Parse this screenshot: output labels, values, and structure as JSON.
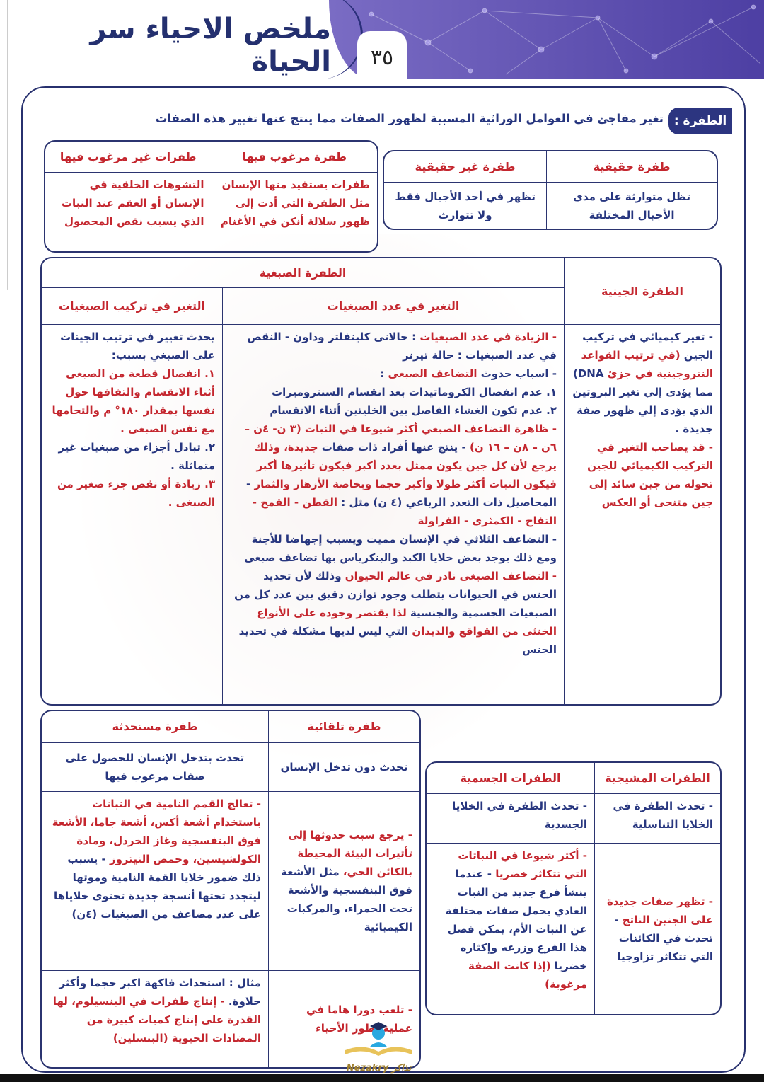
{
  "header": {
    "title": "ملخص الاحياء سر الحياة",
    "page_number": "٣٥"
  },
  "colors": {
    "blue": "#27367f",
    "red": "#c4262e",
    "navy": "#2b3470",
    "banner": "#5a4db0"
  },
  "definition": {
    "label": "الطفرة :",
    "text": "تغير مفاجئ في العوامل الوراثية المسببة لظهور الصفات مما ينتج عنها تغيير هذه الصفات"
  },
  "real_table": {
    "headers": [
      "طفرة حقيقية",
      "طفرة غير حقيقية"
    ],
    "cells": [
      "تظل متوارثة على مدى الأجيال المختلفة",
      "تظهر في أحد الأجيال فقط ولا تتوارث"
    ]
  },
  "desire_table": {
    "headers": [
      "طفرة مرغوب فيها",
      "طفرات غير مرغوب فيها"
    ],
    "cells": [
      "طفرات يستفيد منها الإنسان مثل الطفرة التي أدت إلى ظهور سلالة أنكن في الأغنام",
      "التشوهات الخلقية في الإنسان أو العقم عند النبات الذي يسبب نقص المحصول"
    ]
  },
  "main_table": {
    "gene_header": "الطفرة الجينية",
    "chrom_header": "الطفرة الصبغية",
    "sub_headers": [
      "التغير في عدد الصبغيات",
      "التغير في تركيب الصبغيات"
    ],
    "gene_items": [
      [
        {
          "c": "blue",
          "t": "- تغير كيميائي في تركيب الجين "
        },
        {
          "c": "red",
          "t": "(في ترتيب القواعد النتروجينية في جزئ "
        },
        {
          "c": "blue",
          "t": "DNA) مما يؤدى إلي تغير البروتين الذي يؤدى إلي ظهور صفة جديدة ."
        }
      ],
      [
        {
          "c": "red",
          "t": "- قد يصاحب التغير في التركيب الكيميائي للجين تحوله من جين سائد إلى جين متنحى أو العكس"
        }
      ]
    ],
    "number_items": [
      [
        {
          "c": "red",
          "t": "- الزيادة في عدد الصبغيات "
        },
        {
          "c": "blue",
          "t": ": حالاتى كلينفلتر وداون - النقص في عدد الصبغيات : حالة تيرنر"
        }
      ],
      [
        {
          "c": "blue",
          "t": "- اسباب حدوث "
        },
        {
          "c": "red",
          "t": "التضاعف الصبغى "
        },
        {
          "c": "blue",
          "t": ":"
        }
      ],
      [
        {
          "c": "blue",
          "t": "١. عدم انفصال الكروماتيدات بعد انقسام السنترومیرات"
        }
      ],
      [
        {
          "c": "blue",
          "t": "٢. عدم تكون الغشاء الفاصل بين الخليتين أثناء الانقسام"
        }
      ],
      [
        {
          "c": "red",
          "t": "- ظاهرة التضاعف الصبغي أكثر شيوعا في النبات (٣ ن- ٤ن – ٦ن – ٨ن – ١٦ ن)"
        },
        {
          "c": "blue",
          "t": " - ينتج عنها أفراد ذات صفات "
        },
        {
          "c": "red",
          "t": "جديدة، وذلك يرجع لأن كل جين يكون ممثل بعدد أكبر فيكون تأثيرها أكبر فيكون النبات أكثر طولا وأكبر حجما وبخاصة الأزهار والثمار"
        },
        {
          "c": "blue",
          "t": " - المحاصيل ذات التعدد الرباعي (٤ ن) مثل : "
        },
        {
          "c": "red",
          "t": "القطن - القمح - التفاح - الكمثرى - الفراولة"
        }
      ],
      [
        {
          "c": "blue",
          "t": "- التضاعف الثلاثي في الإنسان مميت ويسبب إجهاضا للأجنة ومع ذلك يوجد بعض خلايا الكبد والبنكرياس بها تضاعف صبغى"
        }
      ],
      [
        {
          "c": "red",
          "t": "- التضاعف الصبغى نادر في عالم الحيوان"
        },
        {
          "c": "blue",
          "t": " وذلك لأن تحديد الجنس في الحيوانات يتطلب وجود توازن دقيق بين عدد كل من الصبغيات الجسمية والجنسية "
        },
        {
          "c": "red",
          "t": "لذا يقتصر وجوده على الأنواع الخنثى من القواقع والديدان "
        },
        {
          "c": "blue",
          "t": "التي ليس لديها مشكلة في تحديد الجنس"
        }
      ]
    ],
    "structure_items": [
      [
        {
          "c": "blue",
          "t": "يحدث تغيير في ترتيب الجينات على الصبغي بسبب:"
        }
      ],
      [
        {
          "c": "red",
          "t": "١. انفصال قطعة من الصبغى أثناء الانقسام والتفافها حول نفسها بمقدار ١٨٠° م والتحامها مع نفس الصبغى ."
        }
      ],
      [
        {
          "c": "blue",
          "t": "٢. تبادل أجزاء من صبغيات غير متماثلة ."
        }
      ],
      [
        {
          "c": "red",
          "t": "٣. زيادة أو نقص جزء صغير من الصبغى ."
        }
      ]
    ]
  },
  "origin_table": {
    "headers": [
      "طفرة تلقائية",
      "طفرة مستحدثة"
    ],
    "definitions": [
      "تحدث دون تدخل الإنسان",
      "تحدث بتدخل الإنسان للحصول على صفات مرغوب فيها"
    ],
    "causes": [
      [
        {
          "c": "red",
          "t": "- يرجع سبب حدوثها إلى تأثيرات البيئة المحيطة بالكائن الحي، "
        },
        {
          "c": "blue",
          "t": "مثل الأشعة فوق البنفسجية والأشعة تحت الحمراء، والمركبات الكيميائية"
        }
      ],
      [
        {
          "c": "red",
          "t": "- تعالج القمم النامية في النباتات باستخدام أشعة أكس، أشعة جاما، الأشعة فوق البنفسجية وغاز الخردل، ومادة الكولشيسين، وحمض النيتروز"
        },
        {
          "c": "blue",
          "t": " - يسبب ذلك ضمور خلايا القمة النامية وموتها ليتجدد تحتها أنسجة جديدة تحتوى خلاياها على عدد مضاعف من الصبغيات (٤ن)"
        }
      ]
    ],
    "importance": [
      [
        {
          "c": "red",
          "t": "- تلعب دورا هاما في عملية تطور الأحياء"
        }
      ],
      [
        {
          "c": "blue",
          "t": "مثال : استحداث فاكهة اكبر حجما وأكثر حلاوة. "
        },
        {
          "c": "red",
          "t": "- إنتاج طفرات في البنسيلوم، لها القدرة على إنتاج كميات كبيرة من المضادات الحيوية (البنسلين)"
        }
      ]
    ]
  },
  "cell_table": {
    "headers": [
      "الطفرات المشيجية",
      "الطفرات الجسمية"
    ],
    "definitions": [
      "- تحدث الطفرة في الخلايا التناسلية",
      "- تحدث الطفرة في الخلايا الجسدية"
    ],
    "details": [
      [
        {
          "c": "red",
          "t": "- تظهر صفات جديدة على الجنين الناتج "
        },
        {
          "c": "blue",
          "t": "- تحدث في الكائنات التي تتكاثر تزاوجيا"
        }
      ],
      [
        {
          "c": "red",
          "t": "- أكثر شيوعا في النباتات التي تتكاثر خضريا "
        },
        {
          "c": "blue",
          "t": "- عندما ينشأ فرع جديد من النبات العادي يحمل صفات مختلفة عن النبات الأم، يمكن فصل هذا الفرع وزرعه وإكثاره خضريا "
        },
        {
          "c": "red",
          "t": "(إذا كانت الصفة مرغوبة)"
        }
      ]
    ]
  },
  "watermark": {
    "text": "Nezakry نذاكر"
  }
}
